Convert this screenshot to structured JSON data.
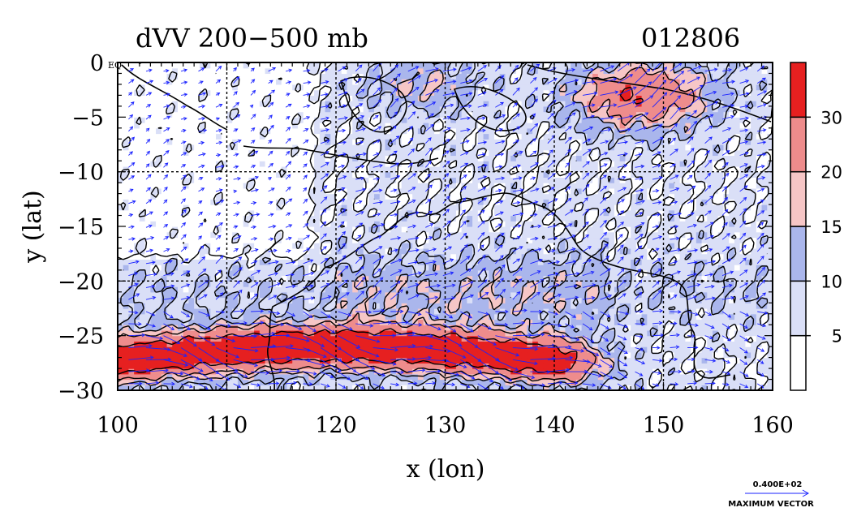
{
  "chart_data": {
    "type": "heatmap",
    "title": "dVV 200−500 mb",
    "date_label": "012806",
    "xlabel": "x (lon)",
    "ylabel": "y (lat)",
    "xlim": [
      100,
      160
    ],
    "ylim": [
      -30,
      0
    ],
    "x_ticks": [
      100,
      110,
      120,
      130,
      140,
      150,
      160
    ],
    "y_ticks": [
      0,
      -5,
      -10,
      -15,
      -20,
      -25,
      -30
    ],
    "y_tick_labels": [
      "0",
      "−5",
      "−10",
      "−15",
      "−20",
      "−25",
      "−30"
    ],
    "eq_label": "EQ",
    "grid": true,
    "colorbar": {
      "levels": [
        5,
        10,
        15,
        20,
        30
      ],
      "colors": [
        "#ffffff",
        "#dadff7",
        "#aab6ec",
        "#f6c6c6",
        "#ee8c8c",
        "#e62020"
      ]
    },
    "vector_legend": {
      "value_label": "0.400E+02",
      "caption": "MAXIMUM VECTOR"
    },
    "approx_field_features": {
      "jet_core_max": 35,
      "jet_lat_range": [
        -29,
        -25
      ],
      "jet_lon_range": [
        101,
        139
      ],
      "northeast_maximum_lon_lat": [
        148,
        -3
      ],
      "northeast_maximum_value": 32
    },
    "colors": {
      "contour": "#000000",
      "vectors": "#1a22ff",
      "grid": "#000000"
    }
  }
}
